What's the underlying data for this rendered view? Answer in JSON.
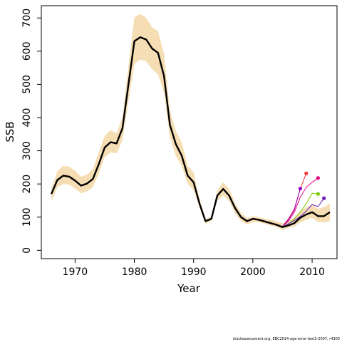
{
  "chart_data": {
    "type": "line",
    "xlabel": "Year",
    "ylabel": "SSB",
    "xlim": [
      1964.3,
      2014.2
    ],
    "ylim": [
      -25,
      737
    ],
    "x_ticks": [
      1970,
      1980,
      1990,
      2000,
      2010
    ],
    "y_ticks": [
      0,
      100,
      200,
      300,
      400,
      500,
      600,
      700
    ],
    "grid": false,
    "legend": "none",
    "years": [
      1966,
      1967,
      1968,
      1969,
      1970,
      1971,
      1972,
      1973,
      1974,
      1975,
      1976,
      1977,
      1978,
      1979,
      1980,
      1981,
      1982,
      1983,
      1984,
      1985,
      1986,
      1987,
      1988,
      1989,
      1990,
      1991,
      1992,
      1993,
      1994,
      1995,
      1996,
      1997,
      1998,
      1999,
      2000,
      2001,
      2002,
      2003,
      2004,
      2005,
      2006,
      2007,
      2008,
      2009,
      2010,
      2011,
      2012,
      2013
    ],
    "ssb": [
      170,
      212,
      225,
      222,
      210,
      195,
      201,
      215,
      260,
      310,
      326,
      322,
      368,
      500,
      630,
      642,
      635,
      608,
      595,
      525,
      378,
      320,
      285,
      225,
      205,
      140,
      88,
      95,
      165,
      185,
      165,
      127,
      100,
      88,
      95,
      92,
      87,
      82,
      77,
      70,
      75,
      82,
      98,
      108,
      115,
      103,
      103,
      115
    ],
    "ci_upper": [
      185,
      238,
      255,
      252,
      240,
      222,
      228,
      245,
      295,
      345,
      362,
      352,
      402,
      555,
      702,
      712,
      700,
      672,
      660,
      592,
      420,
      360,
      325,
      255,
      235,
      155,
      95,
      102,
      180,
      205,
      185,
      142,
      113,
      98,
      102,
      100,
      95,
      92,
      87,
      81,
      88,
      98,
      118,
      130,
      138,
      125,
      130,
      140
    ],
    "ci_lower": [
      148,
      190,
      200,
      198,
      186,
      172,
      178,
      190,
      232,
      282,
      295,
      292,
      332,
      450,
      562,
      575,
      570,
      545,
      530,
      475,
      340,
      285,
      255,
      200,
      182,
      128,
      80,
      88,
      150,
      165,
      148,
      112,
      88,
      78,
      85,
      85,
      80,
      75,
      70,
      61,
      68,
      72,
      84,
      92,
      98,
      86,
      84,
      88
    ],
    "retrospective_peels": [
      {
        "color": "#E6007E",
        "x": [
          2005,
          2006,
          2007,
          2008,
          2009,
          2010,
          2011
        ],
        "y": [
          72,
          88,
          115,
          160,
          190,
          205,
          218
        ]
      },
      {
        "color": "#FF3333",
        "x": [
          2005,
          2006,
          2007,
          2008,
          2009
        ],
        "y": [
          72,
          95,
          125,
          185,
          232
        ]
      },
      {
        "color": "#9900CC",
        "x": [
          2005,
          2006,
          2007,
          2008
        ],
        "y": [
          72,
          92,
          122,
          186
        ]
      },
      {
        "color": "#7CC900",
        "x": [
          2005,
          2006,
          2007,
          2008,
          2009,
          2010,
          2011
        ],
        "y": [
          70,
          80,
          95,
          115,
          140,
          172,
          170
        ]
      },
      {
        "color": "#6A1BB5",
        "x": [
          2005,
          2006,
          2007,
          2008,
          2009,
          2010,
          2011,
          2012
        ],
        "y": [
          70,
          80,
          90,
          102,
          118,
          138,
          132,
          157
        ]
      }
    ],
    "colors": {
      "ci_band": "#F5DEB3",
      "main_line": "#000000",
      "axis": "#000000"
    }
  },
  "footnote": "stockassessment.org, EBC2014-age-error-test3-2007, r4300"
}
